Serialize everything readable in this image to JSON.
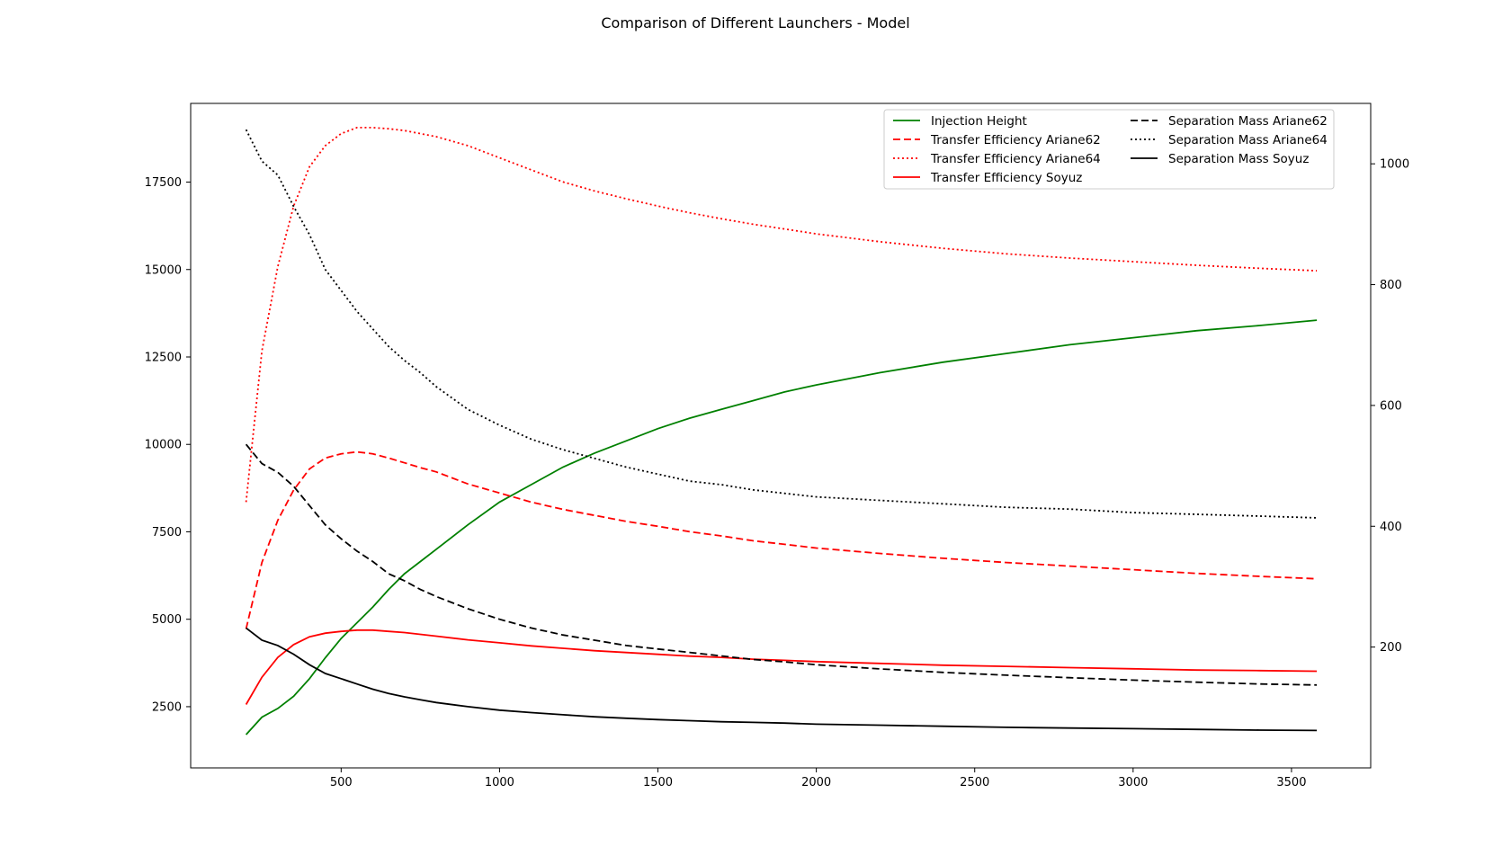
{
  "chart_data": {
    "type": "line",
    "title": "Comparison of Different Launchers - Model",
    "xlabel": "",
    "ylabel_left": "",
    "ylabel_right": "",
    "xlim": [
      25,
      3750
    ],
    "ylim_left": [
      750,
      19750
    ],
    "ylim_right": [
      0,
      1100
    ],
    "xticks": [
      500,
      1000,
      1500,
      2000,
      2500,
      3000,
      3500
    ],
    "yticks_left": [
      2500,
      5000,
      7500,
      10000,
      12500,
      15000,
      17500
    ],
    "yticks_right": [
      200,
      400,
      600,
      800,
      1000
    ],
    "grid": false,
    "legend_position": "top-right",
    "x": [
      200,
      250,
      300,
      350,
      400,
      450,
      500,
      550,
      600,
      650,
      700,
      750,
      800,
      900,
      1000,
      1100,
      1200,
      1300,
      1400,
      1500,
      1600,
      1700,
      1800,
      1900,
      2000,
      2200,
      2400,
      2600,
      2800,
      3000,
      3200,
      3400,
      3580
    ],
    "series": [
      {
        "name": "Injection Height",
        "axis": "left",
        "color": "#008000",
        "dash": "solid",
        "values": [
          1700,
          2200,
          2450,
          2800,
          3300,
          3900,
          4450,
          4900,
          5350,
          5850,
          6300,
          6650,
          7000,
          7700,
          8350,
          8850,
          9350,
          9750,
          10100,
          10450,
          10750,
          11000,
          11250,
          11500,
          11700,
          12050,
          12350,
          12600,
          12850,
          13050,
          13250,
          13400,
          13550
        ]
      },
      {
        "name": "Transfer Efficiency Ariane62",
        "axis": "right",
        "color": "#ff0000",
        "dash": "dashed",
        "values": [
          230,
          340,
          410,
          460,
          495,
          513,
          520,
          523,
          520,
          513,
          505,
          497,
          490,
          470,
          455,
          440,
          428,
          418,
          408,
          400,
          391,
          384,
          376,
          370,
          364,
          355,
          347,
          340,
          334,
          328,
          322,
          317,
          313
        ]
      },
      {
        "name": "Transfer Efficiency Ariane64",
        "axis": "right",
        "color": "#ff0000",
        "dash": "dotted",
        "values": [
          440,
          690,
          830,
          930,
          995,
          1030,
          1050,
          1060,
          1060,
          1058,
          1055,
          1050,
          1045,
          1030,
          1010,
          990,
          970,
          955,
          942,
          930,
          919,
          909,
          900,
          892,
          884,
          871,
          860,
          851,
          844,
          838,
          832,
          827,
          823
        ]
      },
      {
        "name": "Transfer Efficiency Soyuz",
        "axis": "right",
        "color": "#ff0000",
        "dash": "solid",
        "values": [
          105,
          150,
          183,
          204,
          217,
          223,
          226,
          228,
          228,
          226,
          224,
          221,
          218,
          212,
          207,
          202,
          198,
          194,
          191,
          188,
          185,
          183,
          180,
          178,
          176,
          173,
          170,
          168,
          166,
          164,
          162,
          161,
          160
        ]
      },
      {
        "name": "Separation Mass Ariane62",
        "axis": "left",
        "color": "#000000",
        "dash": "dashed",
        "values": [
          10000,
          9450,
          9200,
          8800,
          8250,
          7700,
          7300,
          6950,
          6650,
          6300,
          6100,
          5850,
          5650,
          5300,
          5000,
          4750,
          4550,
          4400,
          4250,
          4150,
          4050,
          3950,
          3850,
          3780,
          3700,
          3580,
          3480,
          3400,
          3330,
          3260,
          3200,
          3150,
          3120
        ]
      },
      {
        "name": "Separation Mass Ariane64",
        "axis": "left",
        "color": "#000000",
        "dash": "dotted",
        "values": [
          19000,
          18100,
          17700,
          16800,
          16000,
          15000,
          14400,
          13800,
          13300,
          12800,
          12400,
          12050,
          11650,
          11000,
          10550,
          10150,
          9850,
          9600,
          9350,
          9150,
          8950,
          8850,
          8700,
          8600,
          8500,
          8400,
          8300,
          8200,
          8150,
          8050,
          8000,
          7950,
          7900
        ]
      },
      {
        "name": "Separation Mass Soyuz",
        "axis": "left",
        "color": "#000000",
        "dash": "solid",
        "values": [
          4750,
          4400,
          4250,
          4000,
          3700,
          3450,
          3300,
          3150,
          3000,
          2880,
          2780,
          2700,
          2620,
          2500,
          2400,
          2330,
          2270,
          2210,
          2170,
          2130,
          2100,
          2070,
          2050,
          2030,
          2000,
          1970,
          1940,
          1910,
          1890,
          1870,
          1850,
          1830,
          1820
        ]
      }
    ]
  }
}
